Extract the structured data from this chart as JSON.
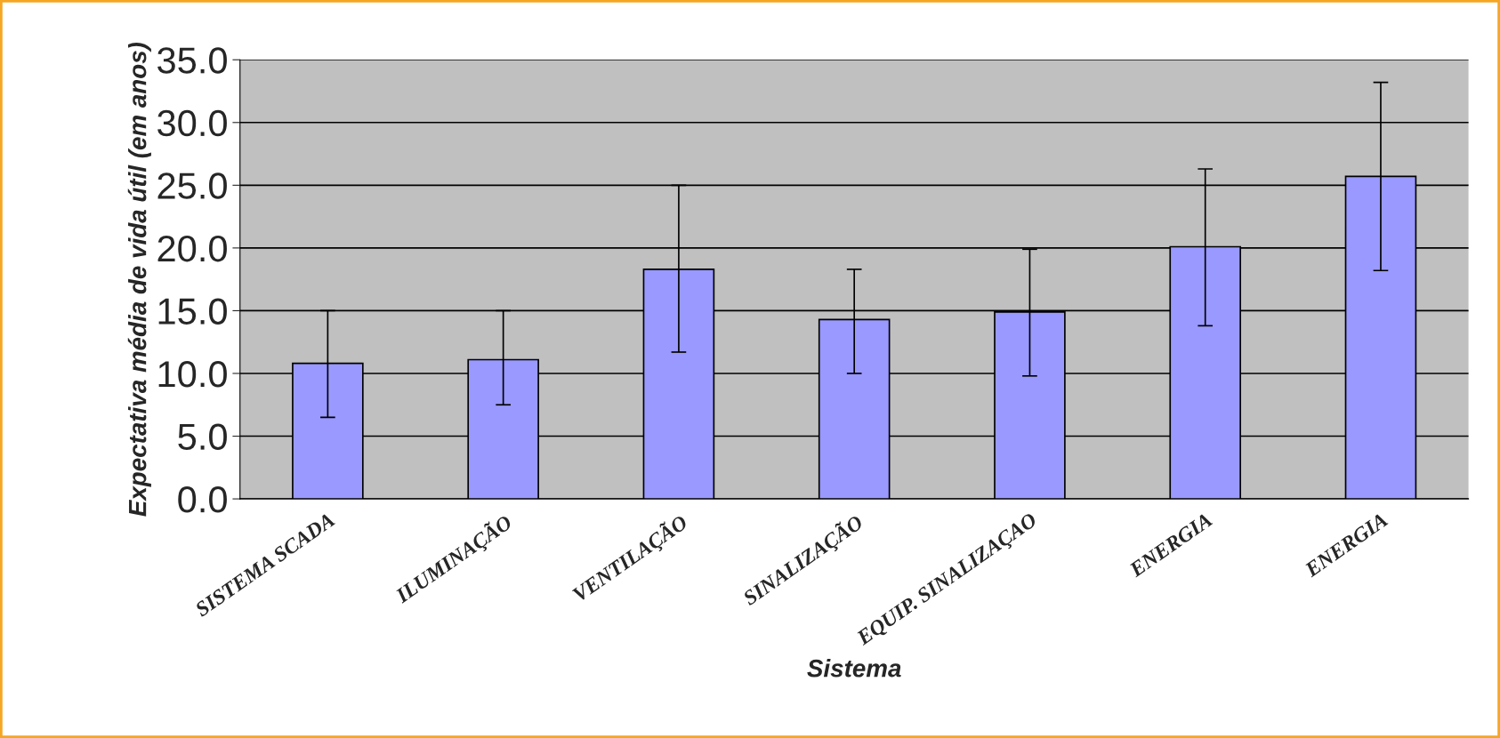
{
  "chart_data": {
    "type": "bar",
    "xlabel": "Sistema",
    "ylabel": "Expectativa média de vida útil (em anos)",
    "categories": [
      "SISTEMA SCADA",
      "ILUMINAÇÃO",
      "VENTILAÇÃO",
      "SINALIZAÇÃO",
      "EQUIP. SINALIZAÇAO",
      "ENERGIA",
      "ENERGIA"
    ],
    "values": [
      10.8,
      11.1,
      18.3,
      14.3,
      14.9,
      20.1,
      25.7
    ],
    "errors": [
      [
        6.5,
        15.0
      ],
      [
        7.5,
        15.0
      ],
      [
        11.7,
        25.0
      ],
      [
        10.0,
        18.3
      ],
      [
        9.8,
        19.9
      ],
      [
        13.8,
        26.3
      ],
      [
        18.2,
        33.2
      ]
    ],
    "color": "#9999ff",
    "ylim": [
      0,
      35
    ],
    "yticks": [
      {
        "value": 0,
        "label": "0.0"
      },
      {
        "value": 5,
        "label": "5.0"
      },
      {
        "value": 10,
        "label": "10.0"
      },
      {
        "value": 15,
        "label": "15.0"
      },
      {
        "value": 20,
        "label": "20.0"
      },
      {
        "value": 25,
        "label": "25.0"
      },
      {
        "value": 30,
        "label": "30.0"
      },
      {
        "value": 35,
        "label": "35.0"
      }
    ],
    "grid": "y"
  }
}
